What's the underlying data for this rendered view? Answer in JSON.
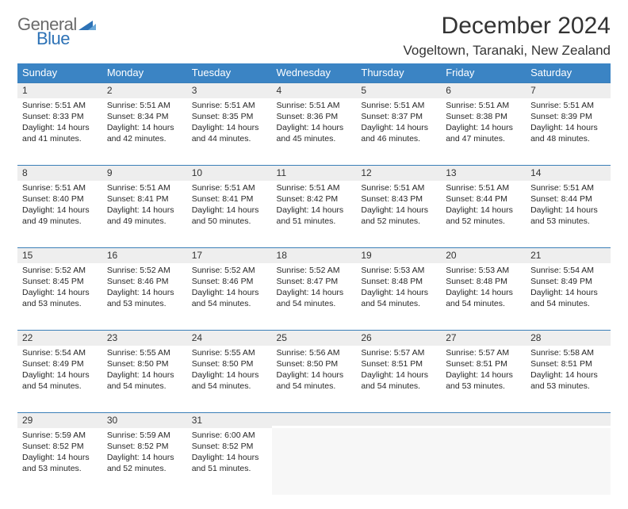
{
  "logo": {
    "word1": "General",
    "word2": "Blue",
    "tri_color": "#2d72b6"
  },
  "title": "December 2024",
  "location": "Vogeltown, Taranaki, New Zealand",
  "colors": {
    "header_bg": "#3b84c4",
    "header_text": "#ffffff",
    "daynum_bg": "#eeeeee",
    "rule": "#3b7fb8",
    "text": "#272727"
  },
  "day_headers": [
    "Sunday",
    "Monday",
    "Tuesday",
    "Wednesday",
    "Thursday",
    "Friday",
    "Saturday"
  ],
  "weeks": [
    [
      {
        "n": "1",
        "sr": "5:51 AM",
        "ss": "8:33 PM",
        "dl": "14 hours and 41 minutes."
      },
      {
        "n": "2",
        "sr": "5:51 AM",
        "ss": "8:34 PM",
        "dl": "14 hours and 42 minutes."
      },
      {
        "n": "3",
        "sr": "5:51 AM",
        "ss": "8:35 PM",
        "dl": "14 hours and 44 minutes."
      },
      {
        "n": "4",
        "sr": "5:51 AM",
        "ss": "8:36 PM",
        "dl": "14 hours and 45 minutes."
      },
      {
        "n": "5",
        "sr": "5:51 AM",
        "ss": "8:37 PM",
        "dl": "14 hours and 46 minutes."
      },
      {
        "n": "6",
        "sr": "5:51 AM",
        "ss": "8:38 PM",
        "dl": "14 hours and 47 minutes."
      },
      {
        "n": "7",
        "sr": "5:51 AM",
        "ss": "8:39 PM",
        "dl": "14 hours and 48 minutes."
      }
    ],
    [
      {
        "n": "8",
        "sr": "5:51 AM",
        "ss": "8:40 PM",
        "dl": "14 hours and 49 minutes."
      },
      {
        "n": "9",
        "sr": "5:51 AM",
        "ss": "8:41 PM",
        "dl": "14 hours and 49 minutes."
      },
      {
        "n": "10",
        "sr": "5:51 AM",
        "ss": "8:41 PM",
        "dl": "14 hours and 50 minutes."
      },
      {
        "n": "11",
        "sr": "5:51 AM",
        "ss": "8:42 PM",
        "dl": "14 hours and 51 minutes."
      },
      {
        "n": "12",
        "sr": "5:51 AM",
        "ss": "8:43 PM",
        "dl": "14 hours and 52 minutes."
      },
      {
        "n": "13",
        "sr": "5:51 AM",
        "ss": "8:44 PM",
        "dl": "14 hours and 52 minutes."
      },
      {
        "n": "14",
        "sr": "5:51 AM",
        "ss": "8:44 PM",
        "dl": "14 hours and 53 minutes."
      }
    ],
    [
      {
        "n": "15",
        "sr": "5:52 AM",
        "ss": "8:45 PM",
        "dl": "14 hours and 53 minutes."
      },
      {
        "n": "16",
        "sr": "5:52 AM",
        "ss": "8:46 PM",
        "dl": "14 hours and 53 minutes."
      },
      {
        "n": "17",
        "sr": "5:52 AM",
        "ss": "8:46 PM",
        "dl": "14 hours and 54 minutes."
      },
      {
        "n": "18",
        "sr": "5:52 AM",
        "ss": "8:47 PM",
        "dl": "14 hours and 54 minutes."
      },
      {
        "n": "19",
        "sr": "5:53 AM",
        "ss": "8:48 PM",
        "dl": "14 hours and 54 minutes."
      },
      {
        "n": "20",
        "sr": "5:53 AM",
        "ss": "8:48 PM",
        "dl": "14 hours and 54 minutes."
      },
      {
        "n": "21",
        "sr": "5:54 AM",
        "ss": "8:49 PM",
        "dl": "14 hours and 54 minutes."
      }
    ],
    [
      {
        "n": "22",
        "sr": "5:54 AM",
        "ss": "8:49 PM",
        "dl": "14 hours and 54 minutes."
      },
      {
        "n": "23",
        "sr": "5:55 AM",
        "ss": "8:50 PM",
        "dl": "14 hours and 54 minutes."
      },
      {
        "n": "24",
        "sr": "5:55 AM",
        "ss": "8:50 PM",
        "dl": "14 hours and 54 minutes."
      },
      {
        "n": "25",
        "sr": "5:56 AM",
        "ss": "8:50 PM",
        "dl": "14 hours and 54 minutes."
      },
      {
        "n": "26",
        "sr": "5:57 AM",
        "ss": "8:51 PM",
        "dl": "14 hours and 54 minutes."
      },
      {
        "n": "27",
        "sr": "5:57 AM",
        "ss": "8:51 PM",
        "dl": "14 hours and 53 minutes."
      },
      {
        "n": "28",
        "sr": "5:58 AM",
        "ss": "8:51 PM",
        "dl": "14 hours and 53 minutes."
      }
    ],
    [
      {
        "n": "29",
        "sr": "5:59 AM",
        "ss": "8:52 PM",
        "dl": "14 hours and 53 minutes."
      },
      {
        "n": "30",
        "sr": "5:59 AM",
        "ss": "8:52 PM",
        "dl": "14 hours and 52 minutes."
      },
      {
        "n": "31",
        "sr": "6:00 AM",
        "ss": "8:52 PM",
        "dl": "14 hours and 51 minutes."
      },
      null,
      null,
      null,
      null
    ]
  ],
  "labels": {
    "sunrise": "Sunrise:",
    "sunset": "Sunset:",
    "daylight": "Daylight:"
  }
}
